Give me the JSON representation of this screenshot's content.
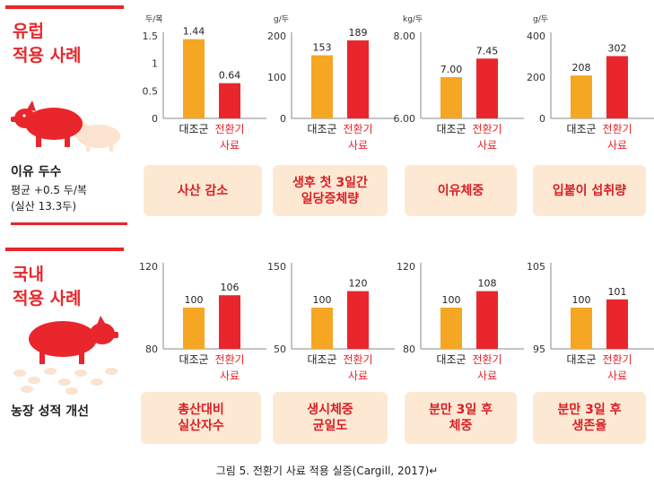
{
  "colors": {
    "control": "#f5a623",
    "treatment": "#e8262b",
    "title": "#e8262b",
    "box_bg": "#fde9d3"
  },
  "section1": {
    "title": "유럽\n적용 사례",
    "stat_title": "이유 두수",
    "stat_line1": "평균 +0.5 두/복",
    "stat_line2": "(실산 13.3두)",
    "icon": "pig-and-piglet-icon"
  },
  "section2": {
    "title": "국내\n적용 사례",
    "stat_title": "농장 성적 개선",
    "icon": "sow-with-piglets-icon"
  },
  "chart_data": [
    {
      "type": "bar",
      "unit": "두/복",
      "categories": [
        "대조군",
        "전환기\n사료"
      ],
      "values": [
        1.44,
        0.64
      ],
      "value_labels": [
        "1.44",
        "0.64"
      ],
      "ylim": [
        0,
        1.5
      ],
      "yticks": [
        "0",
        "0.5",
        "1",
        "1.5"
      ],
      "label": "사산 감소"
    },
    {
      "type": "bar",
      "unit": "g/두",
      "categories": [
        "대조군",
        "전환기\n사료"
      ],
      "values": [
        153,
        189
      ],
      "value_labels": [
        "153",
        "189"
      ],
      "ylim": [
        0,
        200
      ],
      "yticks": [
        "0",
        "100",
        "200"
      ],
      "label": "생후 첫 3일간\n일당증체량"
    },
    {
      "type": "bar",
      "unit": "kg/두",
      "categories": [
        "대조군",
        "전환기\n사료"
      ],
      "values": [
        7.0,
        7.45
      ],
      "value_labels": [
        "7.00",
        "7.45"
      ],
      "ylim": [
        6.0,
        8.0
      ],
      "yticks": [
        "6.00",
        "8.00"
      ],
      "label": "이유체중"
    },
    {
      "type": "bar",
      "unit": "g/두",
      "categories": [
        "대조군",
        "전환기\n사료"
      ],
      "values": [
        208,
        302
      ],
      "value_labels": [
        "208",
        "302"
      ],
      "ylim": [
        0,
        400
      ],
      "yticks": [
        "0",
        "200",
        "400"
      ],
      "label": "입붙이 섭취량"
    },
    {
      "type": "bar",
      "unit": "",
      "categories": [
        "대조군",
        "전환기\n사료"
      ],
      "values": [
        100,
        106
      ],
      "value_labels": [
        "100",
        "106"
      ],
      "ylim": [
        80,
        120
      ],
      "yticks": [
        "80",
        "120"
      ],
      "label": "총산대비\n실산자수"
    },
    {
      "type": "bar",
      "unit": "",
      "categories": [
        "대조군",
        "전환기\n사료"
      ],
      "values": [
        100,
        120
      ],
      "value_labels": [
        "100",
        "120"
      ],
      "ylim": [
        50,
        150
      ],
      "yticks": [
        "50",
        "150"
      ],
      "label": "생시체중\n균일도"
    },
    {
      "type": "bar",
      "unit": "",
      "categories": [
        "대조군",
        "전환기\n사료"
      ],
      "values": [
        100,
        108
      ],
      "value_labels": [
        "100",
        "108"
      ],
      "ylim": [
        80,
        120
      ],
      "yticks": [
        "80",
        "120"
      ],
      "label": "분만 3일 후\n체중"
    },
    {
      "type": "bar",
      "unit": "",
      "categories": [
        "대조군",
        "전환기\n사료"
      ],
      "values": [
        100,
        101
      ],
      "value_labels": [
        "100",
        "101"
      ],
      "ylim": [
        95,
        105
      ],
      "yticks": [
        "95",
        "105"
      ],
      "label": "분만 3일 후\n생존율"
    }
  ],
  "caption": "그림 5. 전환기 사료 적용 실증(Cargill, 2017)↵"
}
